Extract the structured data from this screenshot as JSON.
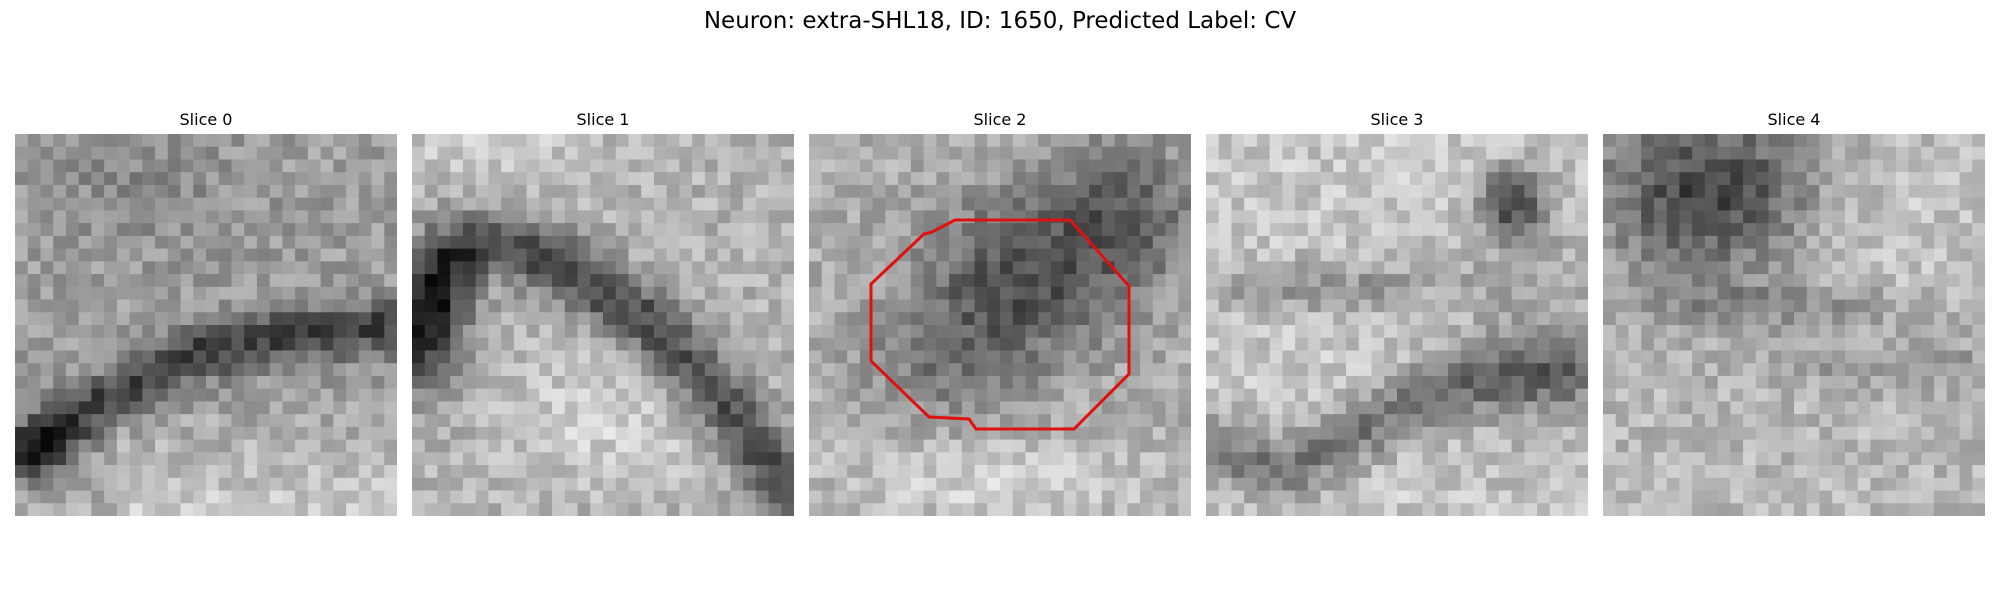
{
  "title": "Neuron: extra-SHL18, ID: 1650, Predicted Label: CV",
  "panels": [
    {
      "title": "Slice 0",
      "image_description": "noisy grayscale EM patch with a dark diagonal band rising from lower-left"
    },
    {
      "title": "Slice 1",
      "image_description": "noisy grayscale EM patch with a dark arc curving from left down to lower-right"
    },
    {
      "title": "Slice 2",
      "image_description": "noisy grayscale EM patch with a dark central cluster outlined by a red octagon"
    },
    {
      "title": "Slice 3",
      "image_description": "bright grayscale EM patch with dark spot upper-right and dark band lower-left"
    },
    {
      "title": "Slice 4",
      "image_description": "grayscale EM patch with large dark region upper-left"
    }
  ],
  "outline_color": "#e01010",
  "colors": {
    "background": "#ffffff",
    "text": "#000000"
  }
}
